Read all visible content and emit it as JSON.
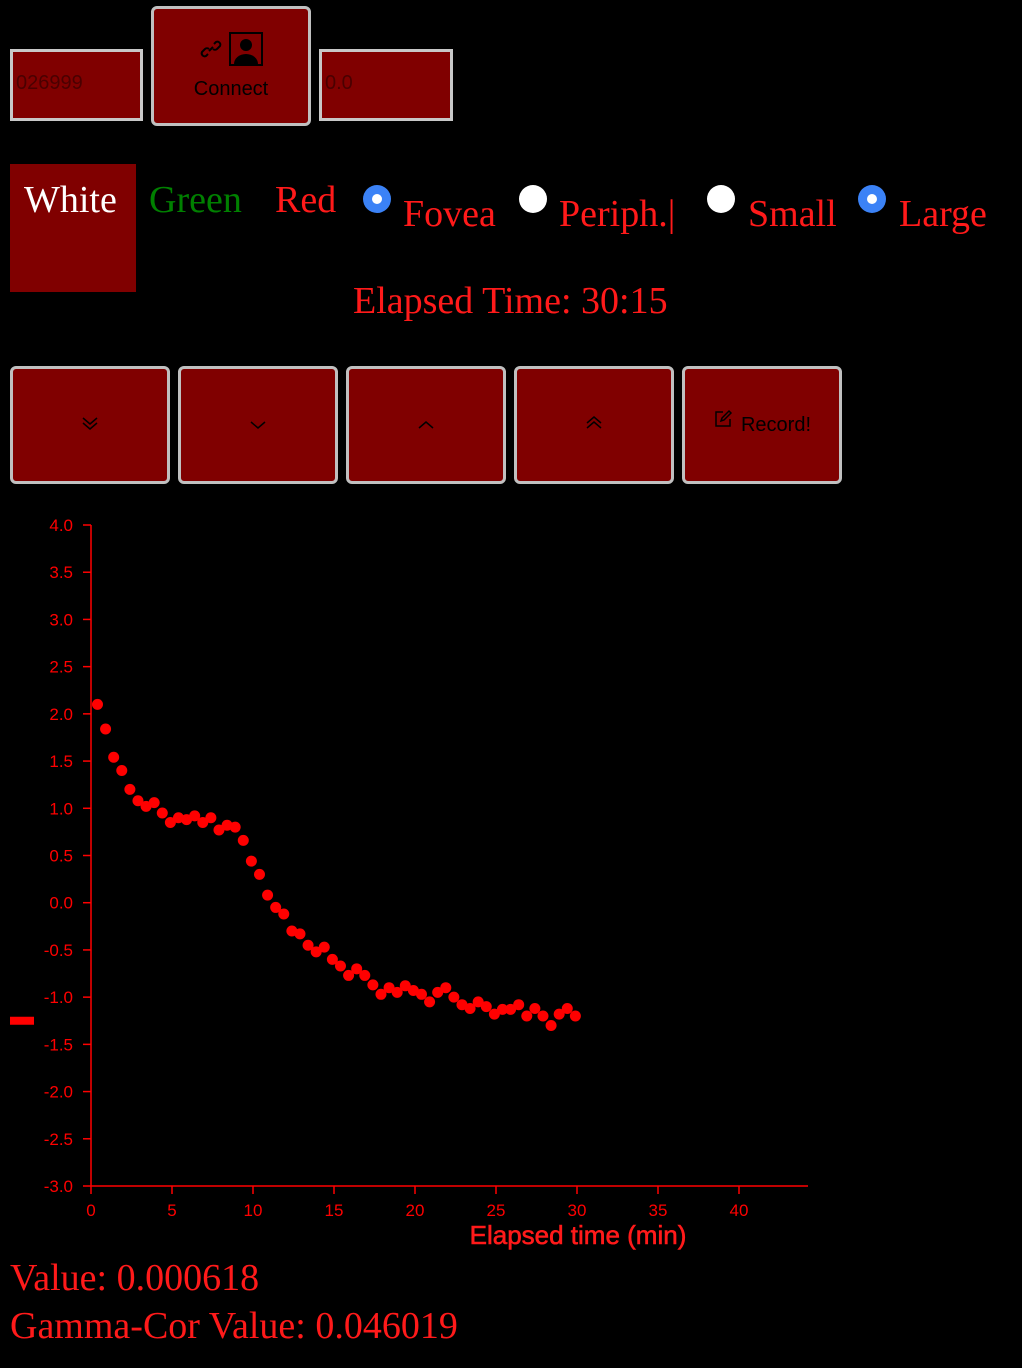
{
  "toolbar": {
    "code_value": "026999",
    "connect_label": "Connect",
    "level_value": "0.0"
  },
  "color_options": {
    "white": "White",
    "green": "Green",
    "red": "Red"
  },
  "radios": {
    "fovea": {
      "label": "Fovea",
      "checked": true
    },
    "periph": {
      "label": "Periph.|",
      "checked": false
    },
    "small": {
      "label": "Small",
      "checked": false
    },
    "large": {
      "label": "Large",
      "checked": true
    }
  },
  "elapsed_time": "Elapsed Time: 30:15",
  "controls": {
    "record_label": "Record!",
    "icons": [
      "double-chevron-down-icon",
      "chevron-down-icon",
      "chevron-up-icon",
      "double-chevron-up-icon",
      "edit-icon"
    ]
  },
  "colors": {
    "accent": "#ff0000",
    "button_bg": "#800000",
    "green": "#008000",
    "radio_checked": "#3b82f6"
  },
  "chart_data": {
    "type": "scatter",
    "xlabel": "Elapsed time (min)",
    "ylabel": "",
    "xlim": [
      0,
      44
    ],
    "ylim": [
      -3.0,
      4.0
    ],
    "xticks": [
      0,
      5,
      10,
      15,
      20,
      25,
      30,
      35,
      40
    ],
    "yticks": [
      -3.0,
      -2.5,
      -2.0,
      -1.5,
      -1.0,
      -0.5,
      0.0,
      0.5,
      1.0,
      1.5,
      2.0,
      2.5,
      3.0,
      3.5,
      4.0
    ],
    "current_level": -1.25,
    "points": [
      [
        0.4,
        2.1
      ],
      [
        0.9,
        1.84
      ],
      [
        1.4,
        1.54
      ],
      [
        1.9,
        1.4
      ],
      [
        2.4,
        1.2
      ],
      [
        2.9,
        1.08
      ],
      [
        3.4,
        1.02
      ],
      [
        3.9,
        1.06
      ],
      [
        4.4,
        0.95
      ],
      [
        4.9,
        0.85
      ],
      [
        5.4,
        0.9
      ],
      [
        5.9,
        0.88
      ],
      [
        6.4,
        0.92
      ],
      [
        6.9,
        0.85
      ],
      [
        7.4,
        0.9
      ],
      [
        7.9,
        0.77
      ],
      [
        8.4,
        0.82
      ],
      [
        8.9,
        0.8
      ],
      [
        9.4,
        0.66
      ],
      [
        9.9,
        0.44
      ],
      [
        10.4,
        0.3
      ],
      [
        10.9,
        0.08
      ],
      [
        11.4,
        -0.05
      ],
      [
        11.9,
        -0.12
      ],
      [
        12.4,
        -0.3
      ],
      [
        12.9,
        -0.33
      ],
      [
        13.4,
        -0.45
      ],
      [
        13.9,
        -0.52
      ],
      [
        14.4,
        -0.47
      ],
      [
        14.9,
        -0.6
      ],
      [
        15.4,
        -0.67
      ],
      [
        15.9,
        -0.77
      ],
      [
        16.4,
        -0.7
      ],
      [
        16.9,
        -0.77
      ],
      [
        17.4,
        -0.87
      ],
      [
        17.9,
        -0.97
      ],
      [
        18.4,
        -0.9
      ],
      [
        18.9,
        -0.95
      ],
      [
        19.4,
        -0.88
      ],
      [
        19.9,
        -0.93
      ],
      [
        20.4,
        -0.97
      ],
      [
        20.9,
        -1.05
      ],
      [
        21.4,
        -0.95
      ],
      [
        21.9,
        -0.9
      ],
      [
        22.4,
        -1.0
      ],
      [
        22.9,
        -1.08
      ],
      [
        23.4,
        -1.12
      ],
      [
        23.9,
        -1.05
      ],
      [
        24.4,
        -1.1
      ],
      [
        24.9,
        -1.18
      ],
      [
        25.4,
        -1.13
      ],
      [
        25.9,
        -1.13
      ],
      [
        26.4,
        -1.08
      ],
      [
        26.9,
        -1.2
      ],
      [
        27.4,
        -1.12
      ],
      [
        27.9,
        -1.2
      ],
      [
        28.4,
        -1.3
      ],
      [
        28.9,
        -1.18
      ],
      [
        29.4,
        -1.12
      ],
      [
        29.9,
        -1.2
      ]
    ]
  },
  "readouts": {
    "value": "Value: 0.000618",
    "gamma": "Gamma-Cor Value: 0.046019"
  }
}
